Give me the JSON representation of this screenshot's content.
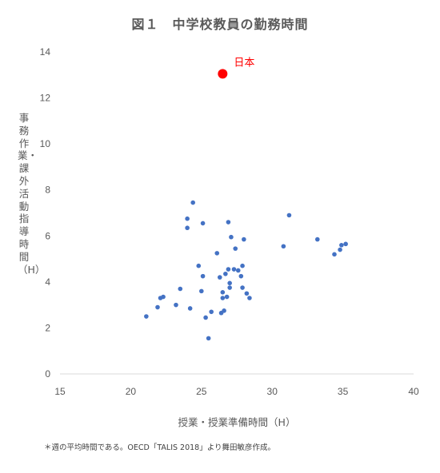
{
  "chart_data": {
    "type": "scatter",
    "title": "図１　中学校教員の勤務時間",
    "xlabel": "授業・授業準備時間（H）",
    "ylabel": "事務作業・課外活動指導時間（H）",
    "xlim": [
      15,
      40
    ],
    "ylim": [
      0,
      14
    ],
    "x_ticks": [
      "15",
      "20",
      "25",
      "30",
      "35",
      "40"
    ],
    "y_ticks": [
      "0",
      "2",
      "4",
      "6",
      "8",
      "10",
      "12",
      "14"
    ],
    "grid": false,
    "series": [
      {
        "color": "#4472c4",
        "points": [
          [
            21.1,
            2.5
          ],
          [
            21.9,
            2.9
          ],
          [
            22.1,
            3.3
          ],
          [
            22.3,
            3.35
          ],
          [
            23.2,
            3.0
          ],
          [
            23.5,
            3.7
          ],
          [
            24.0,
            6.75
          ],
          [
            24.0,
            6.35
          ],
          [
            24.2,
            2.85
          ],
          [
            24.4,
            7.45
          ],
          [
            24.8,
            4.7
          ],
          [
            25.0,
            3.6
          ],
          [
            25.1,
            4.25
          ],
          [
            25.1,
            6.55
          ],
          [
            25.3,
            2.45
          ],
          [
            25.5,
            1.55
          ],
          [
            25.7,
            2.7
          ],
          [
            26.1,
            5.25
          ],
          [
            26.3,
            4.2
          ],
          [
            26.4,
            2.65
          ],
          [
            26.5,
            3.55
          ],
          [
            26.5,
            3.3
          ],
          [
            26.6,
            2.75
          ],
          [
            26.7,
            4.35
          ],
          [
            26.8,
            3.35
          ],
          [
            26.9,
            4.55
          ],
          [
            26.9,
            6.6
          ],
          [
            27.0,
            3.75
          ],
          [
            27.0,
            3.95
          ],
          [
            27.1,
            5.95
          ],
          [
            27.3,
            4.55
          ],
          [
            27.4,
            5.45
          ],
          [
            27.6,
            4.5
          ],
          [
            27.8,
            4.25
          ],
          [
            27.9,
            4.7
          ],
          [
            27.9,
            3.75
          ],
          [
            28.0,
            5.85
          ],
          [
            28.2,
            3.5
          ],
          [
            28.4,
            3.3
          ],
          [
            30.8,
            5.55
          ],
          [
            31.2,
            6.9
          ],
          [
            33.2,
            5.85
          ],
          [
            34.4,
            5.2
          ],
          [
            34.8,
            5.4
          ],
          [
            34.9,
            5.6
          ],
          [
            35.2,
            5.65
          ]
        ]
      },
      {
        "name": "日本",
        "color": "#ff0000",
        "points": [
          [
            26.5,
            13.05
          ]
        ]
      }
    ]
  },
  "footnote": "＊週の平均時間である。OECD「TALIS 2018」より舞田敏彦作成。"
}
